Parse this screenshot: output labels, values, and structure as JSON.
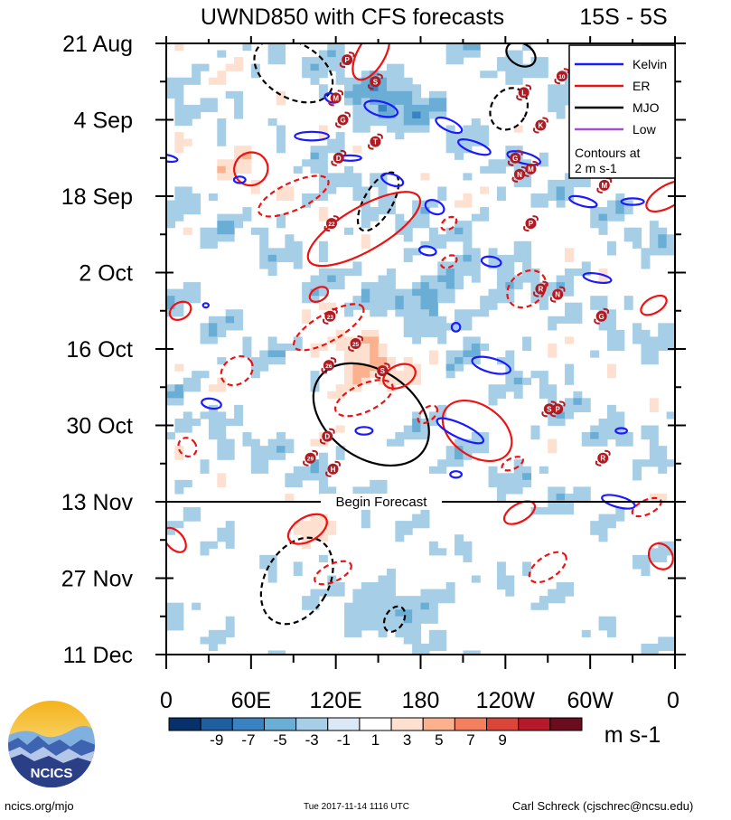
{
  "chart_data": {
    "type": "heatmap",
    "title": "UWND850 with CFS forecasts",
    "region": "15S - 5S",
    "x_tick_labels": [
      "0",
      "60E",
      "120E",
      "180",
      "120W",
      "60W",
      "0"
    ],
    "x_ticks_deg": [
      0,
      60,
      120,
      180,
      240,
      300,
      360
    ],
    "y_tick_labels": [
      "21 Aug",
      "4 Sep",
      "18 Sep",
      "2 Oct",
      "16 Oct",
      "30 Oct",
      "13 Nov",
      "27 Nov",
      "11 Dec"
    ],
    "y_ticks_day": [
      0,
      14,
      28,
      42,
      56,
      70,
      84,
      98,
      112
    ],
    "forecast_start_day": 84,
    "forecast_label": "Begin Forecast",
    "legend": [
      {
        "label": "Kelvin",
        "color": "#1a1aff"
      },
      {
        "label": "ER",
        "color": "#ee1111"
      },
      {
        "label": "MJO",
        "color": "#000000"
      },
      {
        "label": "Low",
        "color": "#a050d0"
      }
    ],
    "contour_note": [
      "Contours at",
      "2 m s-1"
    ],
    "colorbar": {
      "labels": [
        "-9",
        "-7",
        "-5",
        "-3",
        "-1",
        "1",
        "3",
        "5",
        "7",
        "9"
      ],
      "units": "m s-1",
      "colors": [
        "#08306b",
        "#1f5fa0",
        "#3a82c2",
        "#6aaed6",
        "#a6cfe7",
        "#dbe9f6",
        "#ffffff",
        "#fde0cf",
        "#fbb08e",
        "#f2805e",
        "#d9473a",
        "#b61a2a",
        "#6b0d1e"
      ]
    },
    "mjo_contours": [
      {
        "day_top": 60,
        "day_bot": 76,
        "deg_left": 100,
        "deg_right": 190,
        "style": "solid"
      },
      {
        "day_top": 0,
        "day_bot": 10,
        "deg_left": 60,
        "deg_right": 120,
        "style": "dashed"
      },
      {
        "day_top": 8,
        "day_bot": 16,
        "deg_left": 230,
        "deg_right": 255,
        "style": "dashed"
      },
      {
        "day_top": 23,
        "day_bot": 35,
        "deg_left": 140,
        "deg_right": 160,
        "style": "dashed"
      },
      {
        "day_top": 90,
        "day_bot": 107,
        "deg_left": 70,
        "deg_right": 115,
        "style": "dashed"
      },
      {
        "day_top": 103,
        "day_bot": 108,
        "deg_left": 155,
        "deg_right": 168,
        "style": "dashed"
      },
      {
        "day_top": 0,
        "day_bot": 4,
        "deg_left": 240,
        "deg_right": 262,
        "style": "solid"
      }
    ],
    "storm_labels": [
      {
        "label": "P",
        "deg": 128,
        "day": 3
      },
      {
        "label": "S",
        "deg": 148,
        "day": 7
      },
      {
        "label": "M",
        "deg": 120,
        "day": 10
      },
      {
        "label": "G",
        "deg": 125,
        "day": 14
      },
      {
        "label": "T",
        "deg": 148,
        "day": 18
      },
      {
        "label": "D",
        "deg": 122,
        "day": 21
      },
      {
        "label": "22",
        "deg": 117,
        "day": 33
      },
      {
        "label": "L",
        "deg": 253,
        "day": 9
      },
      {
        "label": "10",
        "deg": 280,
        "day": 6
      },
      {
        "label": "K",
        "deg": 265,
        "day": 15
      },
      {
        "label": "G",
        "deg": 247,
        "day": 21
      },
      {
        "label": "M",
        "deg": 258,
        "day": 23
      },
      {
        "label": "N",
        "deg": 250,
        "day": 24
      },
      {
        "label": "P",
        "deg": 258,
        "day": 33
      },
      {
        "label": "R",
        "deg": 265,
        "day": 45
      },
      {
        "label": "N",
        "deg": 277,
        "day": 46
      },
      {
        "label": "G",
        "deg": 308,
        "day": 50
      },
      {
        "label": "23",
        "deg": 116,
        "day": 50
      },
      {
        "label": "25",
        "deg": 134,
        "day": 55
      },
      {
        "label": "26",
        "deg": 115,
        "day": 59
      },
      {
        "label": "S",
        "deg": 153,
        "day": 60
      },
      {
        "label": "S",
        "deg": 271,
        "day": 67
      },
      {
        "label": "P",
        "deg": 277,
        "day": 67
      },
      {
        "label": "D",
        "deg": 114,
        "day": 72
      },
      {
        "label": "29",
        "deg": 102,
        "day": 76
      },
      {
        "label": "H",
        "deg": 118,
        "day": 78
      },
      {
        "label": "R",
        "deg": 309,
        "day": 76
      },
      {
        "label": "M",
        "deg": 310,
        "day": 26
      }
    ]
  },
  "footer": {
    "left": "ncics.org/mjo",
    "center": "Tue 2017-11-14 1116 UTC",
    "right": "Carl Schreck (cjschrec@ncsu.edu)"
  },
  "logo": {
    "text": "NCICS"
  }
}
